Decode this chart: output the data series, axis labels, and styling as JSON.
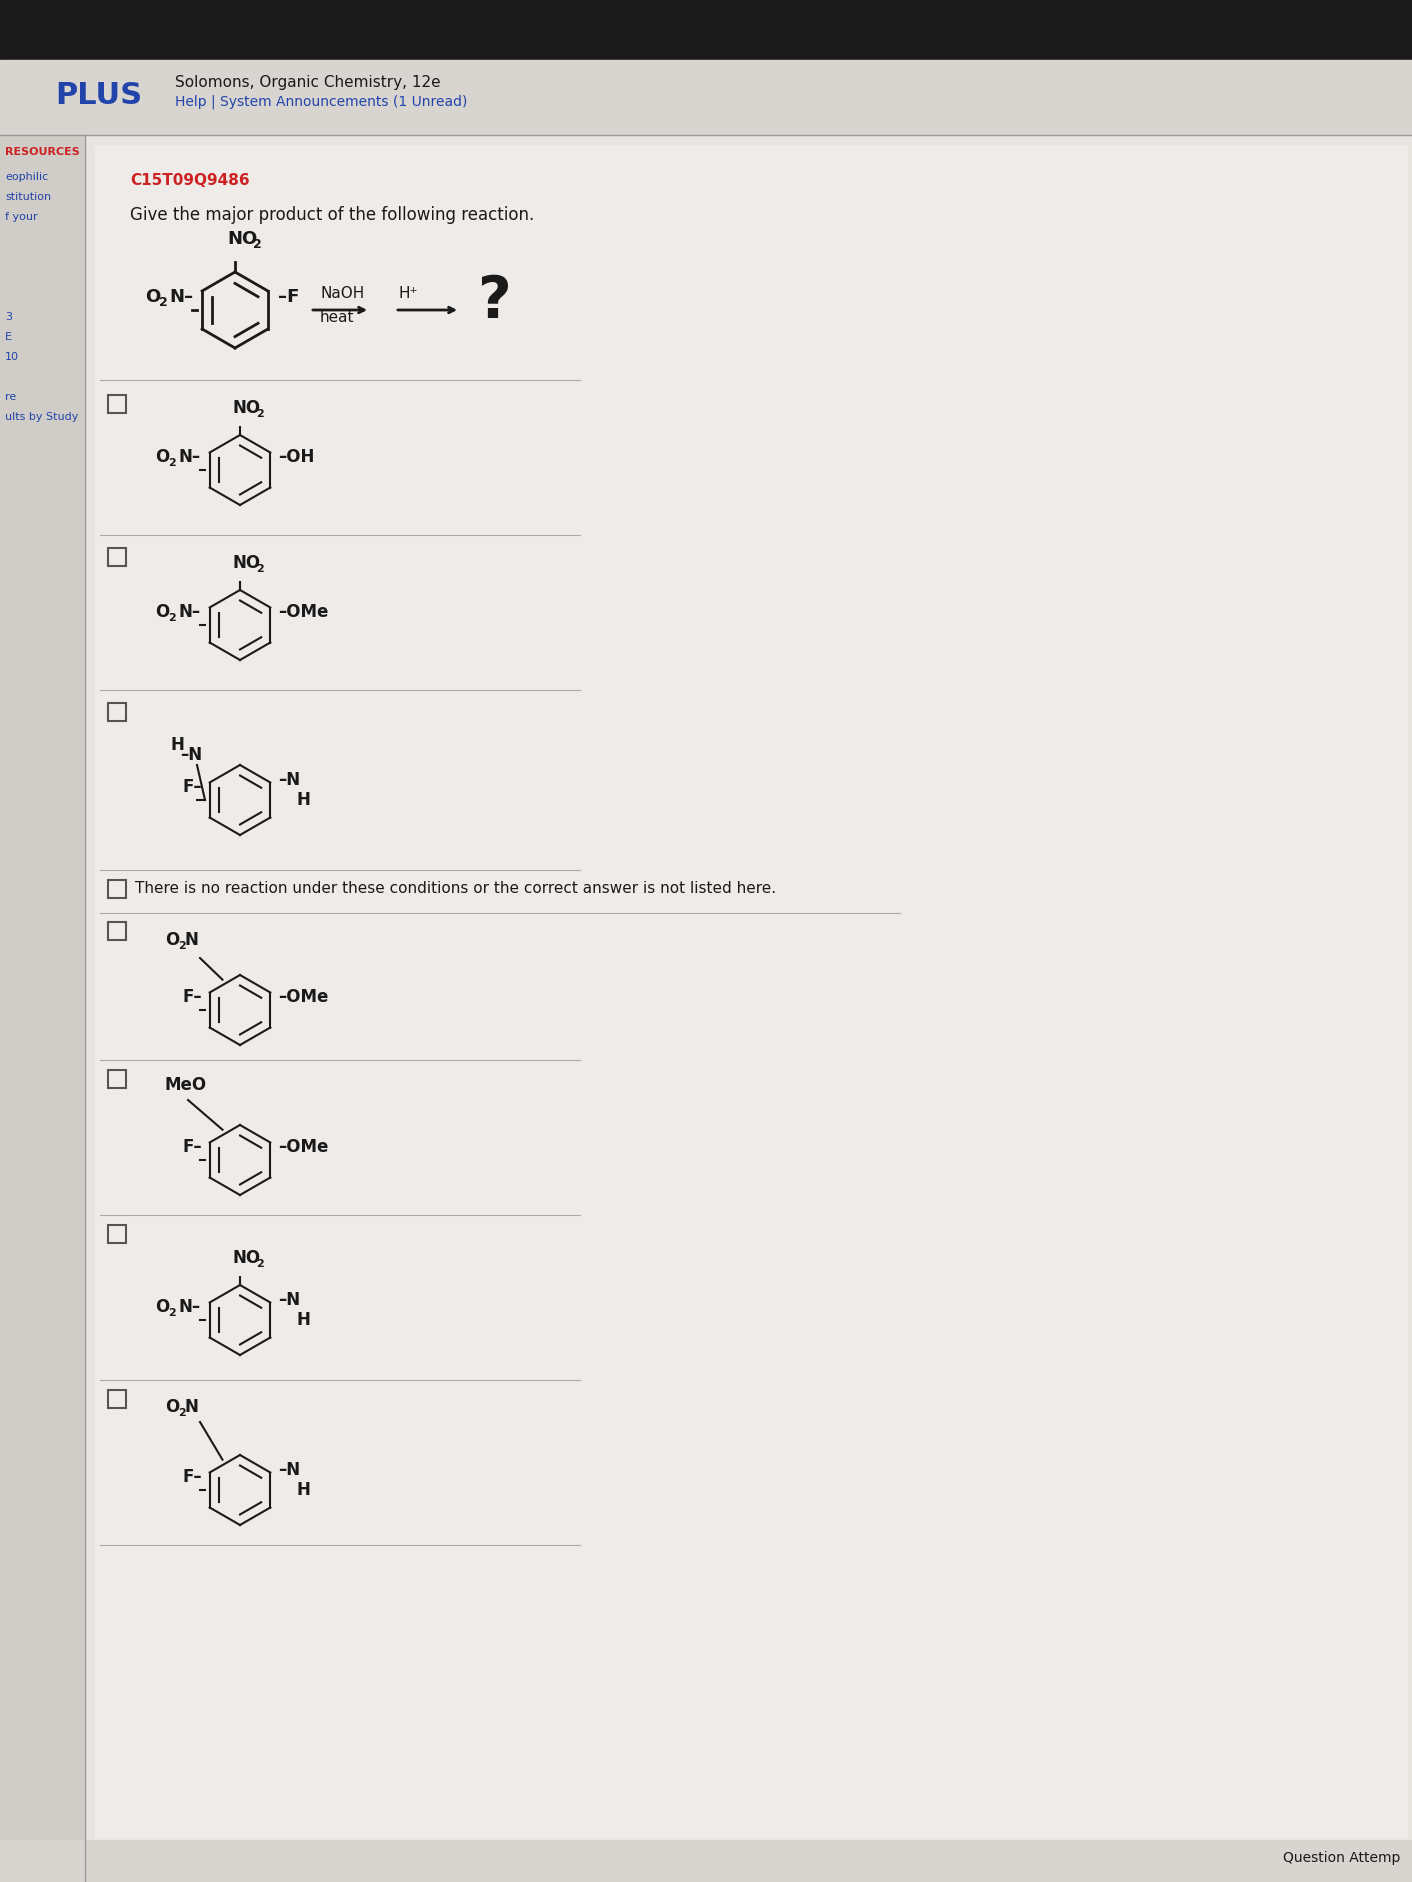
{
  "bg_color": "#d0ccc8",
  "content_bg": "#e8e4e0",
  "white_bg": "#f0ece8",
  "header_bg": "#c8c4c0",
  "title_text": "Solomons, Organic Chemistry, 12e",
  "subtitle_text": "Help | System Announcements (1 Unread)",
  "brand_text": "PLUS",
  "problem_id": "C15T09Q9486",
  "question_text": "Give the major product of the following reaction.",
  "left_sidebar_items": [
    "eophilic",
    "stitution",
    "f your",
    "",
    "",
    "",
    "",
    "3",
    "E",
    "10",
    "",
    "re",
    "ults by Study"
  ],
  "resources_text": "RESOURCES",
  "question_attempt": "Question Attemp"
}
